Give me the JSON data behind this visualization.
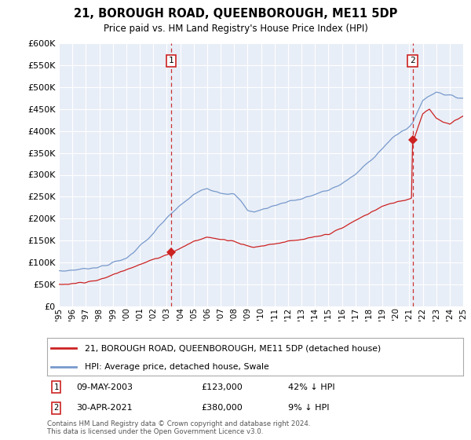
{
  "title": "21, BOROUGH ROAD, QUEENBOROUGH, ME11 5DP",
  "subtitle": "Price paid vs. HM Land Registry's House Price Index (HPI)",
  "background_color": "#ffffff",
  "plot_bg_color": "#e8eef7",
  "hpi_color": "#7799cc",
  "price_color": "#cc2222",
  "marker1_month_idx": 100,
  "marker2_month_idx": 315,
  "marker1_price": 123000,
  "marker2_price": 380000,
  "legend_line1": "21, BOROUGH ROAD, QUEENBOROUGH, ME11 5DP (detached house)",
  "legend_line2": "HPI: Average price, detached house, Swale",
  "footer": "Contains HM Land Registry data © Crown copyright and database right 2024.\nThis data is licensed under the Open Government Licence v3.0.",
  "ylim": [
    0,
    600000
  ],
  "yticks": [
    0,
    50000,
    100000,
    150000,
    200000,
    250000,
    300000,
    350000,
    400000,
    450000,
    500000,
    550000,
    600000
  ],
  "n_months": 361,
  "start_year": 1995
}
